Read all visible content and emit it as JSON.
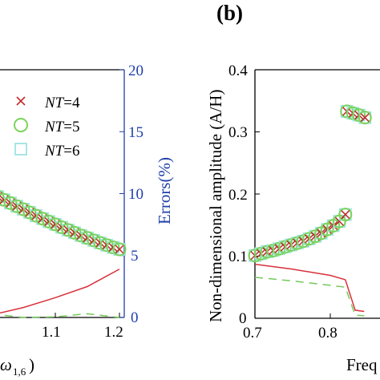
{
  "colors": {
    "cross": "#c0282c",
    "circle": "#7ad35a",
    "square": "#9ee3e0",
    "red_line": "#d8303a",
    "green_dash": "#74c95a",
    "errors_axis": "#1f3fa8"
  },
  "panel_a": {
    "xtick_labels": [
      "1.1",
      "1.2"
    ],
    "right_yticks": [
      "0",
      "5",
      "10",
      "15",
      "20"
    ],
    "right_ylabel": "Errors(%)",
    "xlabel_fragment": "ω",
    "xlabel_subscript": "1,6",
    "xlabel_close": ")"
  },
  "panel_b": {
    "panel_label": "(b)",
    "ylabel": "Non-dimensional amplitude (A/H)",
    "yticks": [
      "0",
      "0.1",
      "0.2",
      "0.3",
      "0.4"
    ],
    "xticks": [
      "0.7",
      "0.8"
    ],
    "xlabel_fragment": "Freq"
  },
  "legend": [
    {
      "marker": "cross",
      "prefix": "NT",
      "suffix": "=4"
    },
    {
      "marker": "circle",
      "prefix": "NT",
      "suffix": "=5"
    },
    {
      "marker": "square",
      "prefix": "NT",
      "suffix": "=6"
    }
  ],
  "chart_data": [
    {
      "type": "line",
      "panel": "a",
      "x_range_visible": [
        1.0,
        1.2
      ],
      "xticks": [
        1.1,
        1.2
      ],
      "y_right_range": [
        0,
        20
      ],
      "y_right_label": "Errors(%)",
      "markers_left_axis": {
        "note": "amplitude markers; left axis not visible",
        "x": [
          1.0,
          1.01,
          1.02,
          1.03,
          1.04,
          1.05,
          1.06,
          1.07,
          1.08,
          1.09,
          1.1,
          1.11,
          1.12,
          1.13,
          1.14,
          1.15,
          1.16,
          1.17,
          1.18,
          1.19,
          1.2
        ],
        "rel_y": [
          0.5,
          0.488,
          0.475,
          0.462,
          0.449,
          0.437,
          0.424,
          0.411,
          0.399,
          0.387,
          0.376,
          0.364,
          0.353,
          0.342,
          0.331,
          0.321,
          0.311,
          0.301,
          0.292,
          0.283,
          0.275
        ]
      },
      "series": [
        {
          "legend": "NT=4",
          "marker": "cross"
        },
        {
          "legend": "NT=5",
          "marker": "circle"
        },
        {
          "legend": "NT=6",
          "marker": "square"
        },
        {
          "style": "solid-red",
          "x": [
            1.0,
            1.05,
            1.1,
            1.15,
            1.2
          ],
          "errors": [
            0.2,
            0.8,
            1.6,
            2.5,
            3.9
          ]
        },
        {
          "style": "dashed-green",
          "x": [
            1.0,
            1.05,
            1.1,
            1.15,
            1.2
          ],
          "errors": [
            0.3,
            0.0,
            0.05,
            0.3,
            0.0
          ]
        }
      ]
    },
    {
      "type": "line",
      "panel": "b",
      "xlabel": "Freq",
      "ylabel": "Non-dimensional amplitude (A/H)",
      "xlim": [
        0.7,
        0.87
      ],
      "ylim": [
        0,
        0.4
      ],
      "xticks": [
        0.7,
        0.8
      ],
      "yticks": [
        0,
        0.1,
        0.2,
        0.3,
        0.4
      ],
      "markers": {
        "lower_branch": {
          "x": [
            0.7,
            0.708,
            0.716,
            0.724,
            0.732,
            0.74,
            0.748,
            0.756,
            0.764,
            0.772,
            0.78,
            0.788,
            0.796,
            0.804,
            0.812,
            0.82
          ],
          "y": [
            0.101,
            0.104,
            0.107,
            0.109,
            0.112,
            0.115,
            0.118,
            0.121,
            0.124,
            0.128,
            0.132,
            0.137,
            0.143,
            0.149,
            0.156,
            0.167
          ]
        },
        "upper_branch": {
          "x": [
            0.822,
            0.83,
            0.838,
            0.846
          ],
          "y": [
            0.333,
            0.33,
            0.327,
            0.323
          ]
        }
      },
      "series": [
        {
          "style": "solid-red",
          "x": [
            0.7,
            0.75,
            0.8,
            0.82,
            0.833,
            0.845
          ],
          "y": [
            0.087,
            0.079,
            0.069,
            0.062,
            0.013,
            0.011
          ]
        },
        {
          "style": "dashed-green",
          "x": [
            0.7,
            0.75,
            0.8,
            0.82,
            0.833,
            0.845
          ],
          "y": [
            0.066,
            0.06,
            0.053,
            0.05,
            0.005,
            0.004
          ]
        }
      ]
    }
  ]
}
